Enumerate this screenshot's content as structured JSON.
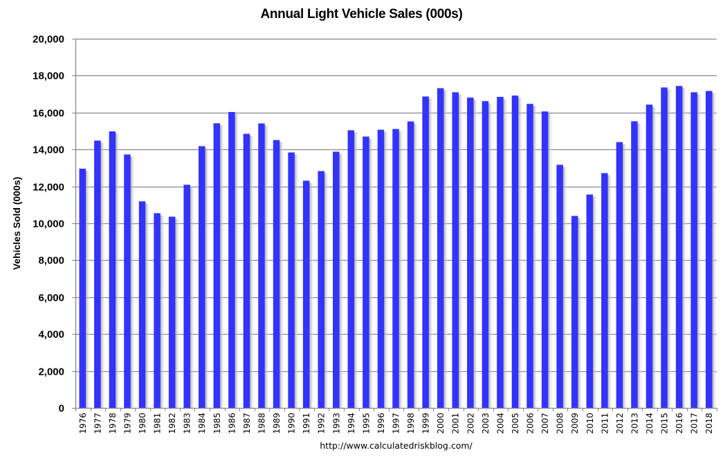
{
  "chart_data": {
    "type": "bar",
    "title": "Annual Light Vehicle Sales  (000s)",
    "xlabel": "",
    "ylabel": "Vehicles Sold (000s)",
    "ylim": [
      0,
      20000
    ],
    "yticks": [
      0,
      2000,
      4000,
      6000,
      8000,
      10000,
      12000,
      14000,
      16000,
      18000,
      20000
    ],
    "ytick_labels": [
      "0",
      "2,000",
      "4,000",
      "6,000",
      "8,000",
      "10,000",
      "12,000",
      "14,000",
      "16,000",
      "18,000",
      "20,000"
    ],
    "grid": true,
    "legend": "none",
    "bar_color": "#3333FF",
    "categories": [
      "1976",
      "1977",
      "1978",
      "1979",
      "1980",
      "1981",
      "1982",
      "1983",
      "1984",
      "1985",
      "1986",
      "1987",
      "1988",
      "1989",
      "1990",
      "1991",
      "1992",
      "1993",
      "1994",
      "1995",
      "1996",
      "1997",
      "1998",
      "1999",
      "2000",
      "2001",
      "2002",
      "2003",
      "2004",
      "2005",
      "2006",
      "2007",
      "2008",
      "2009",
      "2010",
      "2011",
      "2012",
      "2013",
      "2014",
      "2015",
      "2016",
      "2017",
      "2018"
    ],
    "values": [
      12960,
      14480,
      14980,
      13730,
      11190,
      10550,
      10360,
      12090,
      14180,
      15420,
      16030,
      14850,
      15410,
      14510,
      13840,
      12310,
      12830,
      13880,
      15040,
      14700,
      15070,
      15110,
      15520,
      16870,
      17320,
      17100,
      16810,
      16620,
      16850,
      16920,
      16470,
      16060,
      13170,
      10400,
      11560,
      12720,
      14400,
      15530,
      16430,
      17360,
      17440,
      17100,
      17170
    ]
  },
  "footer": {
    "source_url": "http://www.calculatedriskblog.com/"
  }
}
